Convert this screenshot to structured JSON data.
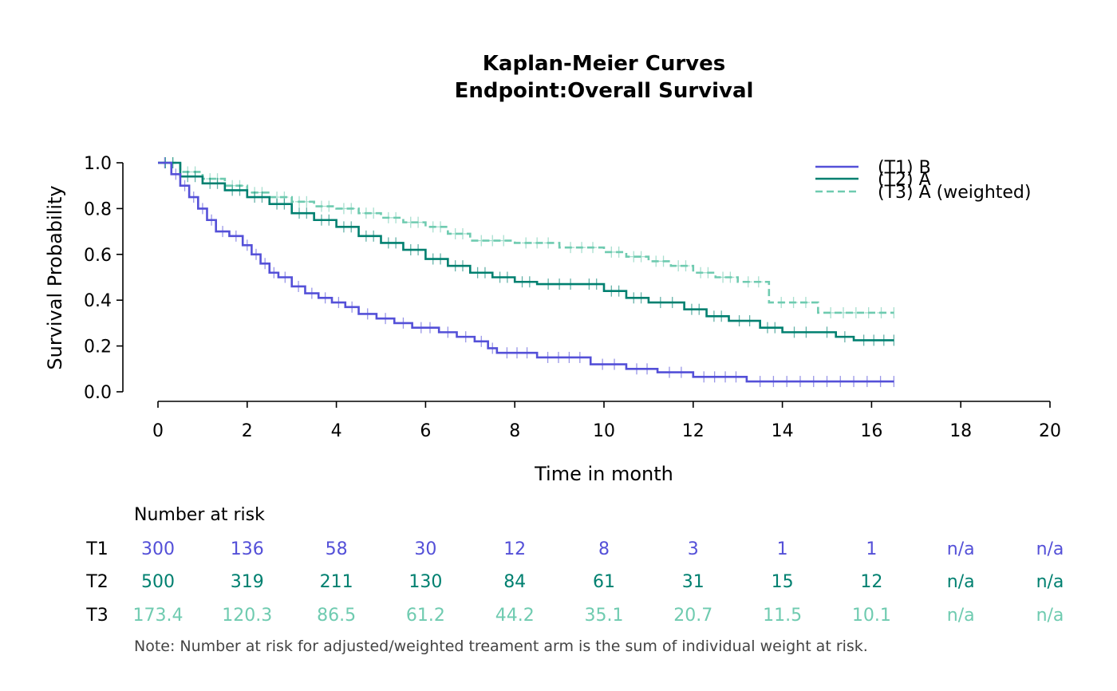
{
  "chart_data": {
    "type": "line",
    "title_line1": "Kaplan-Meier Curves",
    "title_line2": "Endpoint:Overall Survival",
    "xlabel": "Time in month",
    "ylabel": "Survival Probability",
    "xlim": [
      0,
      20
    ],
    "ylim": [
      0,
      1
    ],
    "x_ticks": [
      "0",
      "2",
      "4",
      "6",
      "8",
      "10",
      "12",
      "14",
      "16",
      "18",
      "20"
    ],
    "y_ticks": [
      "0.0",
      "0.2",
      "0.4",
      "0.6",
      "0.8",
      "1.0"
    ],
    "grid": false,
    "legend_position": "top-right",
    "colors": {
      "T1": "#5450d8",
      "T2": "#008070",
      "T3": "#6fcbb0"
    },
    "series": [
      {
        "name": "(T1) B",
        "style": "solid",
        "x": [
          0,
          0.3,
          0.5,
          0.7,
          0.9,
          1.1,
          1.3,
          1.6,
          1.9,
          2.1,
          2.3,
          2.5,
          2.7,
          3.0,
          3.3,
          3.6,
          3.9,
          4.2,
          4.5,
          4.9,
          5.3,
          5.7,
          6.3,
          6.7,
          7.1,
          7.4,
          7.6,
          8.5,
          9.7,
          10.5,
          11.2,
          12.0,
          13.2,
          16.5
        ],
        "y": [
          1.0,
          0.95,
          0.9,
          0.85,
          0.8,
          0.75,
          0.7,
          0.68,
          0.64,
          0.6,
          0.56,
          0.52,
          0.5,
          0.46,
          0.43,
          0.41,
          0.39,
          0.37,
          0.34,
          0.32,
          0.3,
          0.28,
          0.26,
          0.24,
          0.22,
          0.19,
          0.17,
          0.15,
          0.12,
          0.1,
          0.085,
          0.065,
          0.045,
          0.045
        ]
      },
      {
        "name": "(T2) A",
        "style": "solid",
        "x": [
          0,
          0.5,
          1.0,
          1.5,
          2.0,
          2.5,
          3.0,
          3.5,
          4.0,
          4.5,
          5.0,
          5.5,
          6.0,
          6.5,
          7.0,
          7.5,
          8.0,
          8.5,
          9.5,
          10.0,
          10.5,
          11.0,
          11.8,
          12.3,
          12.8,
          13.5,
          14.0,
          14.8,
          15.2,
          15.6,
          16.5
        ],
        "y": [
          1.0,
          0.94,
          0.91,
          0.88,
          0.85,
          0.82,
          0.78,
          0.75,
          0.72,
          0.68,
          0.65,
          0.62,
          0.58,
          0.55,
          0.52,
          0.5,
          0.48,
          0.47,
          0.47,
          0.44,
          0.41,
          0.39,
          0.36,
          0.33,
          0.31,
          0.28,
          0.26,
          0.26,
          0.24,
          0.225,
          0.225
        ]
      },
      {
        "name": "(T3) A (weighted)",
        "style": "dashed",
        "x": [
          0,
          0.5,
          1.0,
          1.5,
          2.0,
          2.5,
          3.0,
          3.5,
          4.0,
          4.5,
          5.0,
          5.5,
          6.0,
          6.5,
          7.0,
          8.0,
          9.0,
          10.0,
          10.5,
          11.0,
          11.5,
          12.0,
          12.5,
          13.0,
          13.7,
          14.8,
          16.5
        ],
        "y": [
          1.0,
          0.96,
          0.93,
          0.9,
          0.87,
          0.85,
          0.83,
          0.81,
          0.8,
          0.78,
          0.76,
          0.74,
          0.72,
          0.69,
          0.66,
          0.65,
          0.63,
          0.61,
          0.59,
          0.57,
          0.55,
          0.52,
          0.5,
          0.48,
          0.39,
          0.345,
          0.345
        ]
      }
    ]
  },
  "risk_table": {
    "header": "Number at risk",
    "rows": [
      {
        "label": "T1",
        "values": [
          "300",
          "136",
          "58",
          "30",
          "12",
          "8",
          "3",
          "1",
          "1",
          "n/a",
          "n/a"
        ]
      },
      {
        "label": "T2",
        "values": [
          "500",
          "319",
          "211",
          "130",
          "84",
          "61",
          "31",
          "15",
          "12",
          "n/a",
          "n/a"
        ]
      },
      {
        "label": "T3",
        "values": [
          "173.4",
          "120.3",
          "86.5",
          "61.2",
          "44.2",
          "35.1",
          "20.7",
          "11.5",
          "10.1",
          "n/a",
          "n/a"
        ]
      }
    ],
    "note": "Note: Number at risk for adjusted/weighted treament arm is the sum of individual weight at risk."
  }
}
